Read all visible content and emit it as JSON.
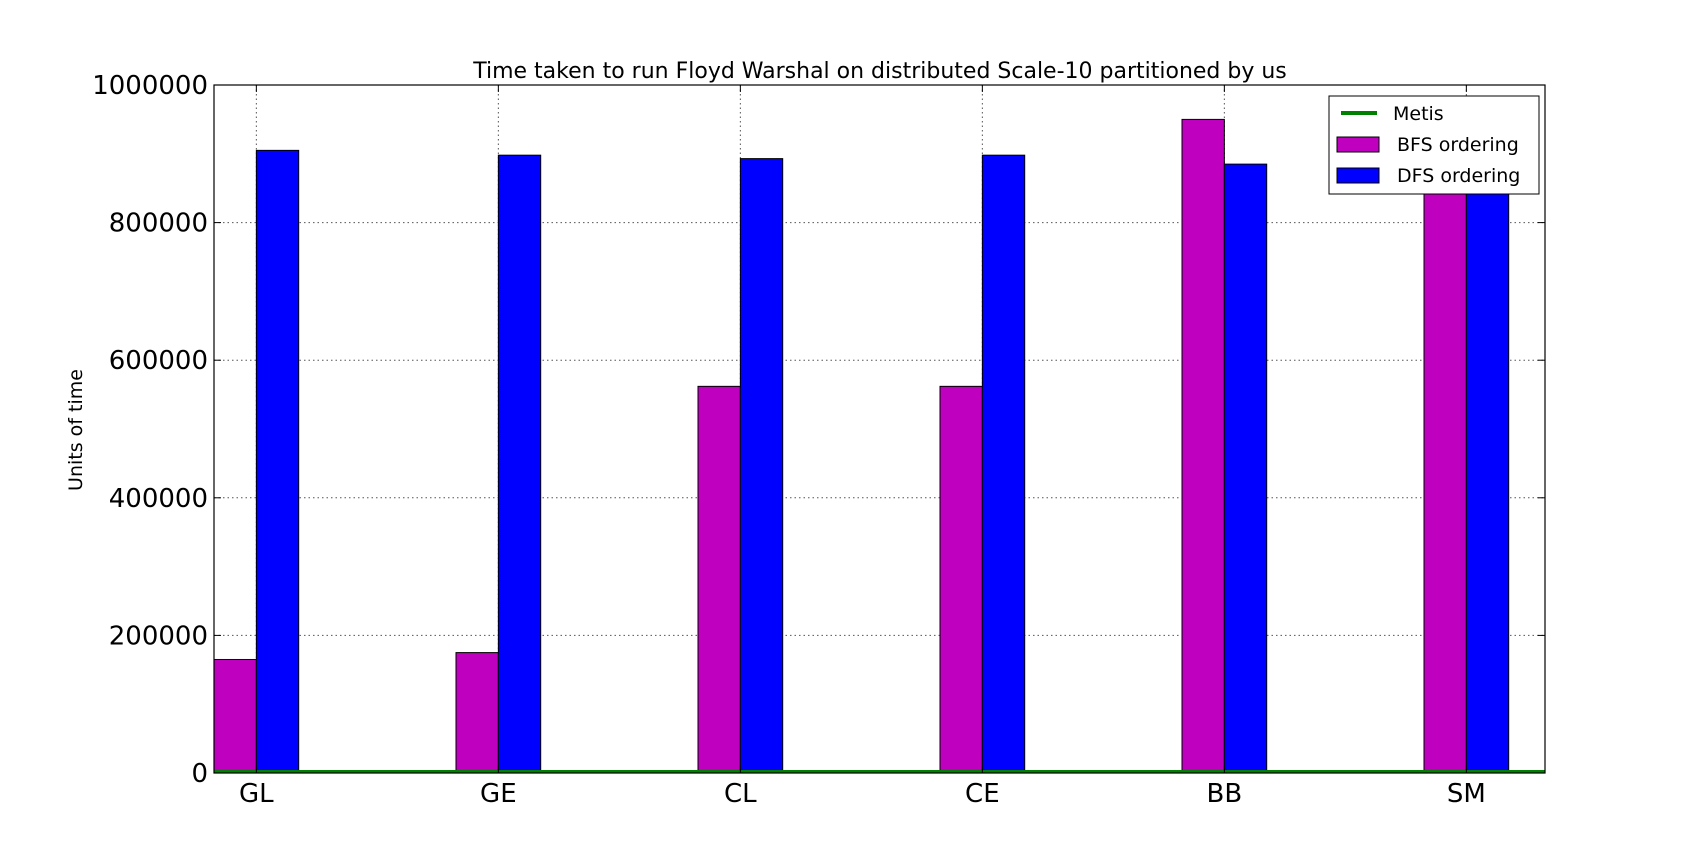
{
  "chart_data": {
    "type": "bar",
    "title": "Time taken to run Floyd Warshal on distributed Scale-10  partitioned by us",
    "xlabel": "",
    "ylabel": "Units of time",
    "categories": [
      "GL",
      "GE",
      "CL",
      "CE",
      "BB",
      "SM"
    ],
    "ylim": [
      0,
      1000000
    ],
    "yticks": [
      0,
      200000,
      400000,
      600000,
      800000,
      1000000
    ],
    "grid": true,
    "legend_position": "top-right",
    "series": [
      {
        "name": "Metis",
        "kind": "line",
        "color": "#008000",
        "values": [
          0,
          0,
          0,
          0,
          0,
          0
        ]
      },
      {
        "name": "BFS ordering",
        "kind": "bar",
        "color": "#bf00bf",
        "values": [
          165000,
          175000,
          562000,
          562000,
          950000,
          885000
        ]
      },
      {
        "name": "DFS ordering",
        "kind": "bar",
        "color": "#0000ff",
        "values": [
          905000,
          898000,
          893000,
          898000,
          885000,
          885000
        ]
      }
    ]
  }
}
